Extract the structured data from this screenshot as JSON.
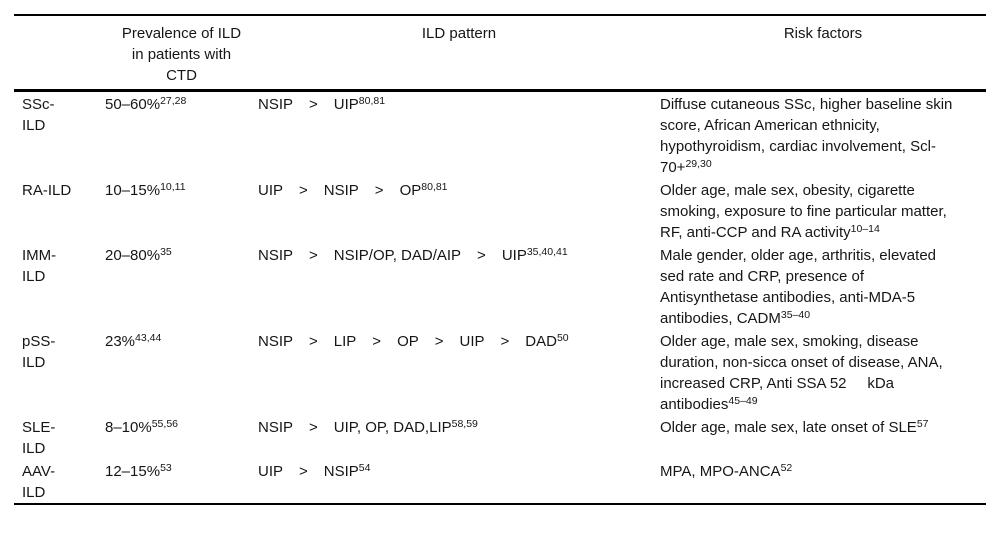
{
  "colors": {
    "background": "#ffffff",
    "text": "#161616",
    "rule": "#000000"
  },
  "table": {
    "headers": {
      "disease": "",
      "prevalence": "Prevalence of ILD in patients with CTD",
      "pattern": "ILD pattern",
      "risk": "Risk factors"
    },
    "separator_glyph": ">",
    "rows": [
      {
        "disease": "SSc-ILD",
        "prevalence": {
          "text": "50–60%",
          "sup": "27,28"
        },
        "pattern": {
          "sequence": [
            "NSIP",
            "UIP"
          ],
          "sup": "80,81"
        },
        "risk": {
          "text": "Diffuse cutaneous SSc, higher baseline skin score, African American ethnicity, hypothyroidism, cardiac involvement, Scl-70+",
          "sup": "29,30"
        }
      },
      {
        "disease": "RA-ILD",
        "prevalence": {
          "text": "10–15%",
          "sup": "10,11"
        },
        "pattern": {
          "sequence": [
            "UIP",
            "NSIP",
            "OP"
          ],
          "sup": "80,81"
        },
        "risk": {
          "text": "Older age, male sex, obesity, cigarette smoking, exposure to fine particular matter, RF, anti-CCP and RA activity",
          "sup": "10–14"
        }
      },
      {
        "disease": "IMM-ILD",
        "prevalence": {
          "text": "20–80%",
          "sup": "35"
        },
        "pattern": {
          "sequence": [
            "NSIP",
            "NSIP/OP, DAD/AIP",
            "UIP"
          ],
          "sup": "35,40,41"
        },
        "risk": {
          "text": "Male gender, older age, arthritis, elevated sed rate and CRP, presence of Antisynthetase antibodies, anti-MDA-5 antibodies, CADM",
          "sup": "35–40"
        }
      },
      {
        "disease": "pSS-ILD",
        "prevalence": {
          "text": "23%",
          "sup": "43,44"
        },
        "pattern": {
          "sequence": [
            "NSIP",
            "LIP",
            "OP",
            "UIP",
            "DAD"
          ],
          "sup": "50"
        },
        "risk": {
          "text": "Older age, male sex, smoking, disease duration, non-sicca onset of disease, ANA, increased CRP, Anti SSA 52     kDa antibodies",
          "sup": "45–49"
        }
      },
      {
        "disease": "SLE-ILD",
        "prevalence": {
          "text": "8–10%",
          "sup": "55,56"
        },
        "pattern": {
          "sequence": [
            "NSIP",
            "UIP, OP, DAD,LIP"
          ],
          "sup": "58,59"
        },
        "risk": {
          "text": "Older age, male sex, late onset of SLE",
          "sup": "57"
        }
      },
      {
        "disease": "AAV-ILD",
        "prevalence": {
          "text": "12–15%",
          "sup": "53"
        },
        "pattern": {
          "sequence": [
            "UIP",
            "NSIP"
          ],
          "sup": "54"
        },
        "risk": {
          "text": "MPA, MPO-ANCA",
          "sup": "52"
        }
      }
    ]
  }
}
